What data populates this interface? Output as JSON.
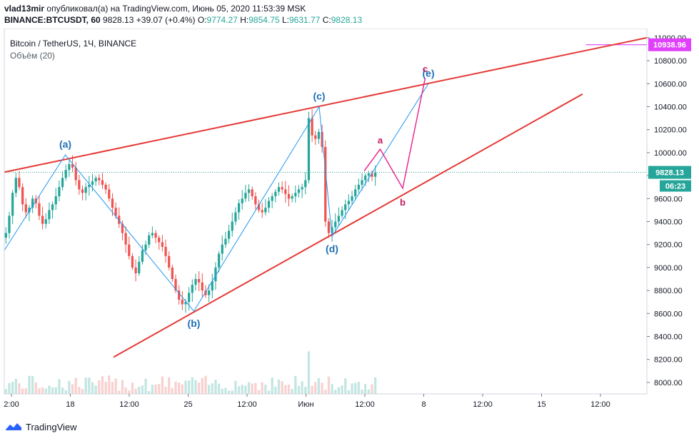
{
  "header": {
    "author": "vlad13mir",
    "published_text": "опубликовал(а) на TradingView.com, Июнь 05, 2020 11:53:39 MSK",
    "symbol": "BINANCE:BTCUSDT, 60",
    "last": "9828.13",
    "change": "+39.07 (+0.4%)",
    "o_label": "O:",
    "o": "9774.27",
    "h_label": "H:",
    "h": "9854.75",
    "l_label": "L:",
    "l": "9631.77",
    "c_label": "C:",
    "c": "9828.13"
  },
  "legend": {
    "title": "Bitcoin / TetherUS, 1Ч, BINANCE",
    "volume": "Объём (20)"
  },
  "footer": {
    "brand": "TradingView"
  },
  "colors": {
    "up": "#26a69a",
    "down": "#ef5350",
    "trend": "#e53935",
    "wave": "#2196f3",
    "alt": "#e91e8c",
    "price_badge": "#26a69a",
    "target_badge": "#e040fb",
    "label_blue": "#1e6fb5",
    "label_red": "#c2185b"
  },
  "chart_data": {
    "type": "candlestick",
    "y_ticks": [
      8000,
      8200,
      8400,
      8600,
      8800,
      9000,
      9200,
      9400,
      9600,
      9800,
      10000,
      10200,
      10400,
      10600,
      10800,
      11000
    ],
    "y_tick_labels": [
      "8000.00",
      "8200.00",
      "8400.00",
      "8600.00",
      "8800.00",
      "9000.00",
      "9200.00",
      "9400.00",
      "9600.00",
      "9800.00",
      "10000.00",
      "10200.00",
      "10400.00",
      "10600.00",
      "10800.00",
      "11000.00"
    ],
    "ylim": [
      7900,
      11080
    ],
    "x_tick_labels": [
      "2:00",
      "18",
      "12:00",
      "25",
      "12:00",
      "Июн",
      "12:00",
      "8",
      "12:00",
      "15",
      "12:00"
    ],
    "current_price": {
      "value": 9828.13,
      "label": "9828.13",
      "countdown": "06:23"
    },
    "target": {
      "value": 10938.96,
      "label": "10938.96"
    },
    "wave_points": [
      {
        "label": "(a)",
        "t": 0.095,
        "price": 9980
      },
      {
        "label": "(b)",
        "t": 0.295,
        "price": 8620
      },
      {
        "label": "(c)",
        "t": 0.49,
        "price": 10400
      },
      {
        "label": "(d)",
        "t": 0.51,
        "price": 9270
      },
      {
        "label": "(e)",
        "t": 0.66,
        "price": 10600
      }
    ],
    "alt_points": [
      {
        "label": "a",
        "t": 0.585,
        "price": 10030
      },
      {
        "label": "b",
        "t": 0.62,
        "price": 9690
      },
      {
        "label": "c",
        "t": 0.655,
        "price": 10650
      }
    ],
    "series": [
      {
        "kind": "price",
        "values": [
          9300,
          9450,
          9650,
          9780,
          9700,
          9550,
          9480,
          9520,
          9600,
          9560,
          9450,
          9380,
          9420,
          9500,
          9550,
          9620,
          9700,
          9780,
          9850,
          9900,
          9870,
          9760,
          9680,
          9650,
          9700,
          9720,
          9750,
          9780,
          9760,
          9720,
          9680,
          9600,
          9520,
          9450,
          9380,
          9300,
          9200,
          9100,
          9000,
          8950,
          9050,
          9150,
          9200,
          9280,
          9300,
          9260,
          9220,
          9180,
          9100,
          9000,
          8900,
          8800,
          8720,
          8680,
          8700,
          8780,
          8850,
          8900,
          8870,
          8800,
          8760,
          8800,
          8880,
          9000,
          9120,
          9200,
          9250,
          9320,
          9400,
          9480,
          9560,
          9600,
          9650,
          9680,
          9620,
          9550,
          9500,
          9480,
          9520,
          9580,
          9620,
          9660,
          9700,
          9680,
          9640,
          9600,
          9620,
          9650,
          9680,
          9700,
          9760,
          10300,
          10150,
          10120,
          10180,
          10050,
          9400,
          9300,
          9350,
          9400,
          9450,
          9500,
          9550,
          9580,
          9620,
          9680,
          9720,
          9760,
          9800,
          9820,
          9790,
          9828
        ]
      }
    ]
  }
}
